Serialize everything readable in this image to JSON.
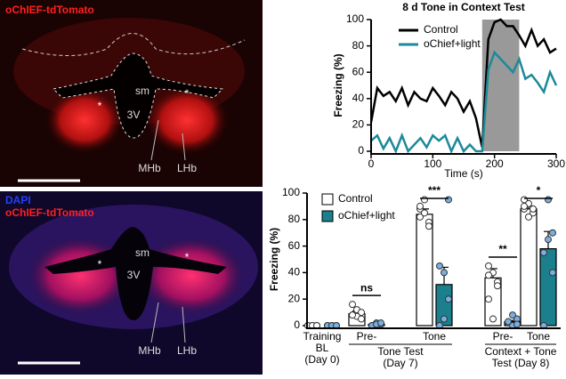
{
  "panels": [
    {
      "labels": [
        "oChIEF-tdTomato"
      ],
      "annotations": [
        "sm",
        "3V",
        "MHb",
        "LHb",
        "*",
        "*"
      ]
    },
    {
      "labels": [
        "DAPI",
        "oChIEF-tdTomato"
      ],
      "annotations": [
        "sm",
        "3V",
        "MHb",
        "LHb",
        "*",
        "*"
      ]
    }
  ],
  "chart_data": [
    {
      "type": "line",
      "title": "8 d Tone in Context Test",
      "x_label": "Time (s)",
      "y_label": "Freezing (%)",
      "x": [
        0,
        10,
        20,
        30,
        40,
        50,
        60,
        70,
        80,
        90,
        100,
        110,
        120,
        130,
        140,
        150,
        160,
        170,
        180,
        190,
        200,
        210,
        220,
        230,
        240,
        250,
        260,
        270,
        280,
        290,
        300
      ],
      "series": [
        {
          "name": "Control",
          "color": "#000000",
          "values": [
            22,
            48,
            42,
            45,
            38,
            48,
            35,
            45,
            40,
            38,
            48,
            42,
            35,
            45,
            40,
            30,
            38,
            25,
            3,
            85,
            98,
            100,
            95,
            95,
            88,
            80,
            92,
            80,
            85,
            75,
            78
          ]
        },
        {
          "name": "oChief+light",
          "color": "#1b8a99",
          "values": [
            8,
            12,
            2,
            10,
            0,
            12,
            0,
            5,
            10,
            3,
            12,
            8,
            12,
            0,
            10,
            0,
            5,
            0,
            0,
            62,
            75,
            70,
            65,
            60,
            70,
            55,
            58,
            52,
            45,
            60,
            50
          ]
        }
      ],
      "highlight_x": [
        180,
        240
      ],
      "highlight_color": "#999999",
      "xlim": [
        0,
        300
      ],
      "xticks": [
        0,
        100,
        200,
        300
      ],
      "ylim": [
        0,
        100
      ],
      "yticks": [
        0,
        20,
        40,
        60,
        80,
        100
      ]
    },
    {
      "type": "bar",
      "y_label": "Freezing (%)",
      "categories": [
        [
          "Training",
          "BL",
          "(Day 0)"
        ],
        [
          "Pre-"
        ],
        [
          "Tone"
        ],
        [
          "Pre-"
        ],
        [
          "Tone"
        ]
      ],
      "groups": [
        [
          "Tone Test",
          "(Day 7)"
        ],
        [
          "Context + Tone",
          "Test (Day 8)"
        ]
      ],
      "series": [
        {
          "name": "Control",
          "color": "#ffffff",
          "stroke": "#000000",
          "values": [
            0,
            9,
            84,
            36,
            88
          ],
          "errors": [
            0,
            2,
            4,
            7,
            2
          ],
          "points": [
            [
              0,
              0,
              0,
              0,
              0,
              0
            ],
            [
              16,
              12,
              10,
              8,
              7,
              5,
              8
            ],
            [
              88,
              95,
              78,
              82,
              85,
              75,
              90
            ],
            [
              45,
              40,
              33,
              20,
              5,
              30,
              38
            ],
            [
              88,
              92,
              85,
              90,
              82,
              88,
              95
            ]
          ]
        },
        {
          "name": "oChief+light",
          "color": "#1b7f8e",
          "stroke": "#000000",
          "values": [
            0,
            1,
            31,
            3,
            58
          ],
          "errors": [
            0,
            0.5,
            13,
            1,
            13
          ],
          "points": [
            [
              0,
              0,
              0,
              0,
              0,
              0
            ],
            [
              0,
              2,
              1,
              0,
              1,
              2
            ],
            [
              0,
              5,
              20,
              45,
              40,
              95
            ],
            [
              2,
              0,
              5,
              3,
              8,
              1
            ],
            [
              0,
              95,
              70,
              55,
              65,
              40
            ]
          ]
        }
      ],
      "significance": [
        {
          "category": 1,
          "text": "ns"
        },
        {
          "category": 2,
          "text": "***"
        },
        {
          "category": 3,
          "text": "**"
        },
        {
          "category": 4,
          "text": "*"
        }
      ],
      "ylim": [
        0,
        100
      ],
      "yticks": [
        0,
        20,
        40,
        60,
        80,
        100
      ]
    }
  ]
}
